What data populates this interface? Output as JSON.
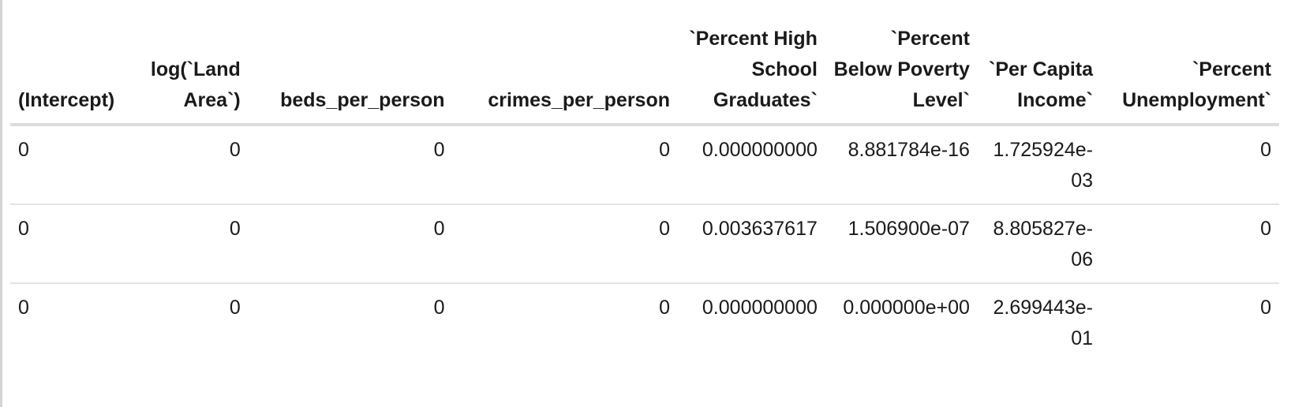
{
  "table": {
    "headers": [
      "(Intercept)",
      "log(`Land Area`)",
      "beds_per_person",
      "crimes_per_person",
      "`Percent High School Graduates`",
      "`Percent Below Poverty Level`",
      "`Per Capita Income`",
      "`Percent Unemployment`"
    ],
    "rows": [
      [
        "0",
        "0",
        "0",
        "0",
        "0.000000000",
        "8.881784e-16",
        "1.725924e-\n03",
        "0"
      ],
      [
        "0",
        "0",
        "0",
        "0",
        "0.003637617",
        "1.506900e-07",
        "8.805827e-\n06",
        "0"
      ],
      [
        "0",
        "0",
        "0",
        "0",
        "0.000000000",
        "0.000000e+00",
        "2.699443e-\n01",
        "0"
      ]
    ]
  }
}
